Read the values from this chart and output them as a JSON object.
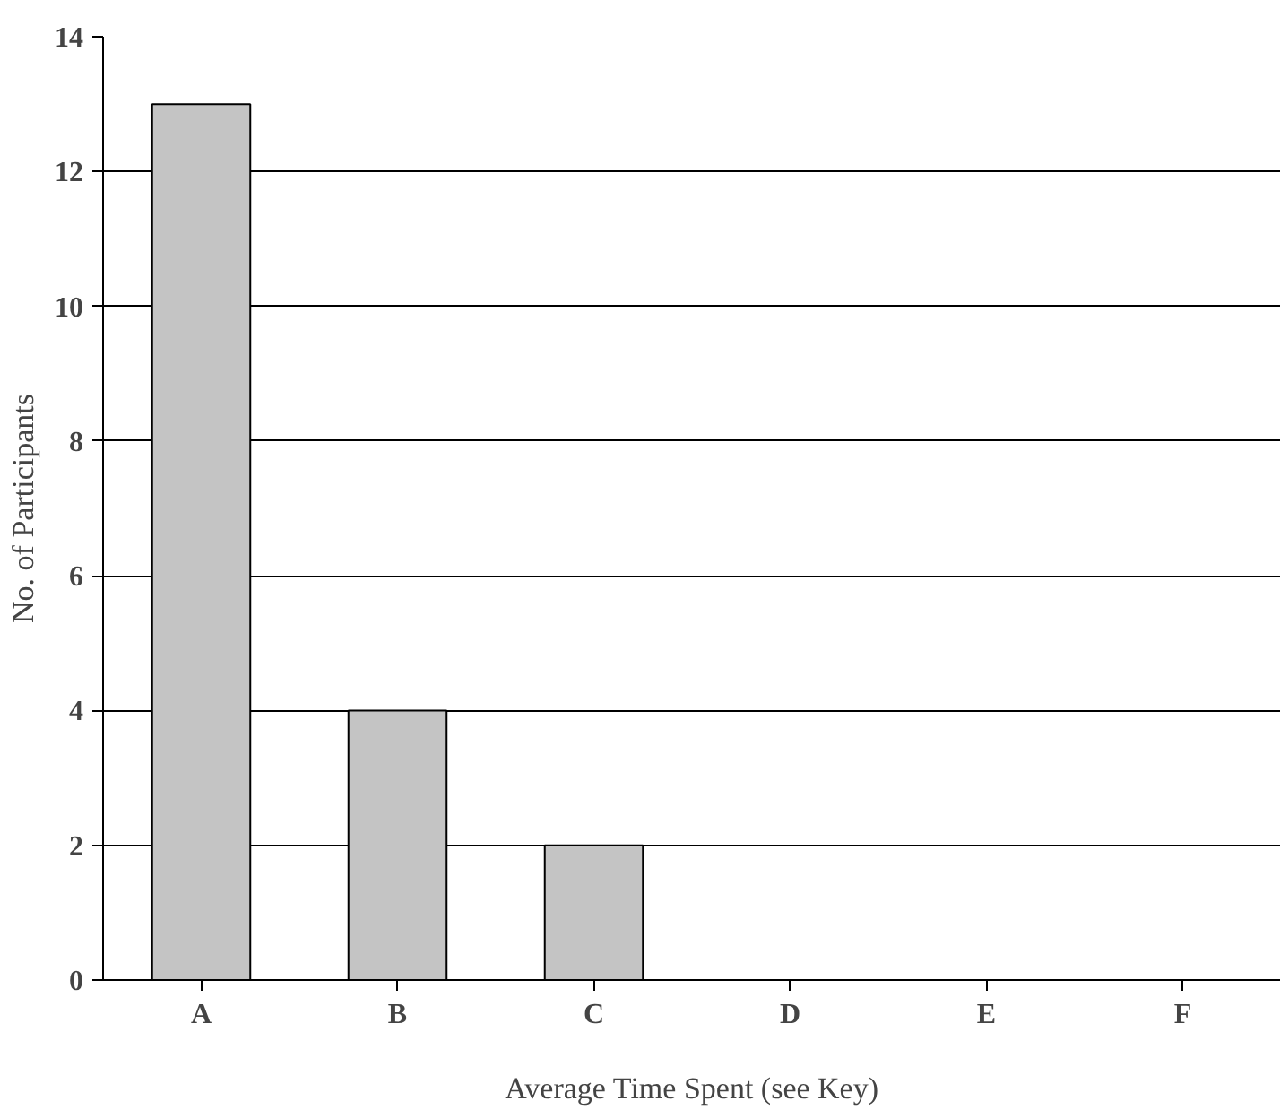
{
  "chart_data": {
    "type": "bar",
    "xlabel": "Average Time Spent (see Key)",
    "ylabel": "No. of Participants",
    "categories": [
      "A",
      "B",
      "C",
      "D",
      "E",
      "F"
    ],
    "values": [
      13,
      4,
      2,
      0,
      0,
      0
    ],
    "color": "#c4c4c4",
    "ylim": [
      0,
      14
    ],
    "yticks": [
      0,
      2,
      4,
      6,
      8,
      10,
      12,
      14
    ],
    "grid": "y"
  }
}
